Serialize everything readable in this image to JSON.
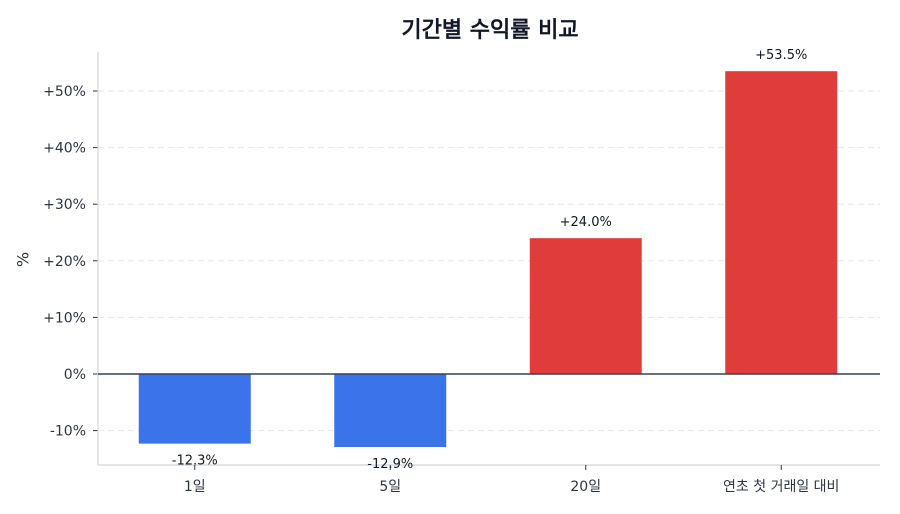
{
  "chart_data": {
    "type": "bar",
    "title": "기간별 수익률 비교",
    "xlabel": "",
    "ylabel": "%",
    "categories": [
      "1일",
      "5일",
      "20일",
      "연초 첫 거래일 대비"
    ],
    "values": [
      -12.3,
      -12.9,
      24.0,
      53.5
    ],
    "value_labels": [
      "-12.3%",
      "-12.9%",
      "+24.0%",
      "+53.5%"
    ],
    "ylim": [
      -16,
      57
    ],
    "yticks": [
      -10,
      0,
      10,
      20,
      30,
      40,
      50
    ],
    "ytick_labels": [
      "-10%",
      "0%",
      "+10%",
      "+20%",
      "+30%",
      "+40%",
      "+50%"
    ],
    "grid": true,
    "legend": null,
    "colors": {
      "positive": "#e03c3c",
      "negative": "#3b73eb",
      "zero_line": "#374151",
      "grid": "#e5e7eb",
      "spine": "#d1d5db"
    }
  }
}
